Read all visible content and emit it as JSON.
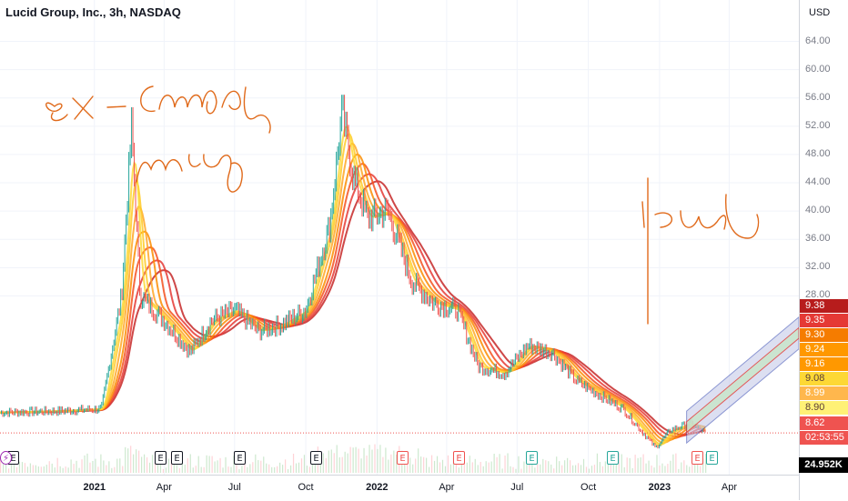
{
  "header": {
    "title": "Lucid Group, Inc., 3h, NASDAQ"
  },
  "price_axis": {
    "currency": "USD",
    "ticks": [
      "64.00",
      "60.00",
      "56.00",
      "52.00",
      "48.00",
      "44.00",
      "40.00",
      "36.00",
      "32.00",
      "28.00"
    ],
    "tags": [
      {
        "label": "9.38",
        "color": "#b71c1c"
      },
      {
        "label": "9.35",
        "color": "#e53935"
      },
      {
        "label": "9.30",
        "color": "#f57c00"
      },
      {
        "label": "9.24",
        "color": "#ff9800"
      },
      {
        "label": "9.16",
        "color": "#ff9800"
      },
      {
        "label": "9.08",
        "color": "#fdd835"
      },
      {
        "label": "8.99",
        "color": "#ffb74d"
      },
      {
        "label": "8.90",
        "color": "#fff176"
      },
      {
        "label": "8.62",
        "color": "#ef5350"
      },
      {
        "label": "02:53:55",
        "color": "#ef5350"
      }
    ],
    "volume_label": "24.952K"
  },
  "time_axis": {
    "ticks": [
      {
        "label": "2021",
        "bold": true
      },
      {
        "label": "Apr",
        "bold": false
      },
      {
        "label": "Jul",
        "bold": false
      },
      {
        "label": "Oct",
        "bold": false
      },
      {
        "label": "2022",
        "bold": true
      },
      {
        "label": "Apr",
        "bold": false
      },
      {
        "label": "Jul",
        "bold": false
      },
      {
        "label": "Oct",
        "bold": false
      },
      {
        "label": "2023",
        "bold": true
      },
      {
        "label": "Apr",
        "bold": false
      }
    ]
  },
  "events": [
    {
      "label": "E",
      "kind": "earnings-past"
    },
    {
      "label": "E",
      "kind": "earnings-past"
    },
    {
      "label": "E",
      "kind": "earnings-past"
    },
    {
      "label": "E",
      "kind": "earnings-past"
    },
    {
      "label": "E",
      "kind": "earnings-past"
    },
    {
      "label": "E",
      "kind": "earnings-negative"
    },
    {
      "label": "E",
      "kind": "earnings-negative"
    },
    {
      "label": "E",
      "kind": "earnings-positive"
    },
    {
      "label": "E",
      "kind": "earnings-positive"
    },
    {
      "label": "E",
      "kind": "earnings-negative"
    },
    {
      "label": "E",
      "kind": "earnings-positive"
    },
    {
      "label": "⚡",
      "kind": "split"
    }
  ],
  "colors": {
    "up": "#26a69a",
    "down": "#ef5350",
    "ribbon_fast": "#fdd835",
    "ribbon_slow": "#c62828",
    "channel": "#5c6bc0",
    "channel_fill": "#c5cae9",
    "channel_mid_fill": "#c8e6c9",
    "ink": "#e06a1b"
  },
  "chart_data": {
    "type": "line",
    "ylim": [
      4,
      66
    ],
    "xrange": [
      "2020-09-01",
      "2023-06-30"
    ],
    "series": [
      {
        "x": [
          "2020-09-01",
          "2020-11-15",
          "2021-01-10",
          "2021-02-05",
          "2021-02-18",
          "2021-03-01",
          "2021-04-01",
          "2021-05-05",
          "2021-06-01",
          "2021-07-01",
          "2021-08-01",
          "2021-09-01",
          "2021-10-01",
          "2021-11-01",
          "2021-11-17",
          "2021-12-01",
          "2021-12-20",
          "2022-01-15",
          "2022-02-15",
          "2022-03-15",
          "2022-04-15",
          "2022-05-12",
          "2022-06-15",
          "2022-07-15",
          "2022-08-15",
          "2022-09-15",
          "2022-10-15",
          "2022-11-15",
          "2022-12-27",
          "2023-01-15",
          "2023-02-10",
          "2023-03-01"
        ],
        "values": [
          11.5,
          11.7,
          12.0,
          28.0,
          52.0,
          28.0,
          24.5,
          20.0,
          24.5,
          26.0,
          23.0,
          24.0,
          26.0,
          38.0,
          54.0,
          45.0,
          39.0,
          40.0,
          30.0,
          27.0,
          26.0,
          18.0,
          17.0,
          21.0,
          20.0,
          16.0,
          14.0,
          12.0,
          6.5,
          9.0,
          10.0,
          8.6
        ]
      }
    ],
    "channel": {
      "x": [
        "2023-02-05",
        "2023-06-30"
      ],
      "upper": [
        11.7,
        25.0
      ],
      "mid_upper": [
        10.2,
        23.5
      ],
      "mid_lower": [
        8.7,
        22.0
      ],
      "lower": [
        7.2,
        20.5
      ]
    },
    "last_price": 8.62
  }
}
